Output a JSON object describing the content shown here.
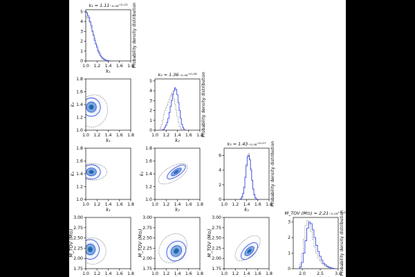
{
  "colors": {
    "page_bg": "#000000",
    "plot_bg": "#ffffff",
    "primary": "#3344dd",
    "secondary": "#777777",
    "fill_dark": "#1f5fa8",
    "fill_mid": "#5b9bd5",
    "fill_light": "#e6f0fa"
  },
  "chart_data": {
    "type": "corner",
    "parameters": [
      {
        "id": "k1",
        "label": "k₁",
        "title": "k₁ = 1.11₋₀.₀₈⁺⁰·¹¹",
        "range": [
          1.0,
          1.8
        ],
        "ticks": [
          "1.0",
          "1.2",
          "1.4",
          "1.6",
          "1.8"
        ]
      },
      {
        "id": "k2",
        "label": "k₂",
        "title": "k₂ = 1.36₋₀.₀₈⁺⁰·⁰⁸",
        "range": [
          1.0,
          1.8
        ],
        "ticks": [
          "1.0",
          "1.2",
          "1.4",
          "1.6",
          "1.8"
        ]
      },
      {
        "id": "k3",
        "label": "k₃",
        "title": "k₃ = 1.43₋₀.₀₆⁺⁰·⁰⁷",
        "range": [
          1.0,
          1.8
        ],
        "ticks": [
          "1.0",
          "1.2",
          "1.4",
          "1.6",
          "1.8"
        ]
      },
      {
        "id": "mtov",
        "label": "M_TOV (M⊙)",
        "title": "M_TOV (M⊙) = 2.21₋₀.₀₉⁺⁰·¹⁵",
        "range": [
          1.75,
          3.0
        ],
        "ticks": [
          "1.75",
          "2.00",
          "2.25",
          "2.50",
          "2.75",
          "3.00"
        ]
      }
    ],
    "diag_ylabel": "Probability density distribution",
    "diagonals": [
      {
        "param": "k1",
        "yrange": [
          0,
          5.2
        ],
        "yticks": [
          0,
          1,
          2,
          3,
          4,
          5
        ],
        "xticks_shown": [
          "1.0",
          "1.2",
          "1.4",
          "1.6",
          "1.8"
        ],
        "primary": {
          "x": [
            1.0,
            1.02,
            1.04,
            1.06,
            1.08,
            1.1,
            1.12,
            1.14,
            1.16,
            1.18,
            1.2,
            1.22,
            1.24,
            1.26,
            1.28,
            1.3,
            1.32,
            1.34,
            1.36,
            1.38,
            1.4,
            1.42,
            1.44
          ],
          "y": [
            5.0,
            4.9,
            4.6,
            4.4,
            4.0,
            3.6,
            3.0,
            2.6,
            2.1,
            1.7,
            1.4,
            1.0,
            0.8,
            0.55,
            0.4,
            0.25,
            0.18,
            0.12,
            0.08,
            0.05,
            0.03,
            0.02,
            0.0
          ]
        },
        "secondary": {
          "x": [
            1.0,
            1.02,
            1.04,
            1.06,
            1.08,
            1.1,
            1.12,
            1.14,
            1.16,
            1.18,
            1.2,
            1.22,
            1.24,
            1.26,
            1.28,
            1.3,
            1.32,
            1.34,
            1.36,
            1.38,
            1.4,
            1.42,
            1.44
          ],
          "y": [
            4.4,
            4.5,
            4.3,
            4.0,
            3.8,
            3.4,
            3.1,
            2.7,
            2.3,
            1.9,
            1.6,
            1.2,
            0.95,
            0.7,
            0.5,
            0.35,
            0.25,
            0.15,
            0.1,
            0.07,
            0.04,
            0.02,
            0.0
          ]
        }
      },
      {
        "param": "k2",
        "yrange": [
          0,
          5.2
        ],
        "yticks": [
          0,
          1,
          2,
          3,
          4,
          5
        ],
        "xticks_shown": [
          "1.0",
          "1.2",
          "1.4",
          "1.6",
          "1.8"
        ],
        "primary": {
          "x": [
            1.14,
            1.16,
            1.18,
            1.2,
            1.22,
            1.24,
            1.26,
            1.28,
            1.3,
            1.32,
            1.34,
            1.36,
            1.38,
            1.4,
            1.42,
            1.44,
            1.46,
            1.48,
            1.5,
            1.52,
            1.54
          ],
          "y": [
            0.05,
            0.1,
            0.3,
            0.5,
            0.8,
            1.2,
            1.8,
            2.4,
            3.0,
            3.6,
            4.0,
            4.3,
            4.1,
            3.6,
            2.8,
            2.0,
            1.2,
            0.6,
            0.3,
            0.1,
            0.0
          ]
        },
        "secondary": {
          "x": [
            1.1,
            1.12,
            1.14,
            1.16,
            1.18,
            1.2,
            1.22,
            1.24,
            1.26,
            1.28,
            1.3,
            1.32,
            1.34,
            1.36,
            1.38,
            1.4,
            1.42,
            1.44,
            1.46,
            1.48,
            1.5
          ],
          "y": [
            0.2,
            0.6,
            1.0,
            1.6,
            2.0,
            2.3,
            2.5,
            2.8,
            3.1,
            3.5,
            3.8,
            3.6,
            3.2,
            2.6,
            2.0,
            1.4,
            0.8,
            0.4,
            0.2,
            0.1,
            0.0
          ]
        }
      },
      {
        "param": "k3",
        "yrange": [
          0,
          7.0
        ],
        "yticks": [
          0,
          2,
          4,
          6
        ],
        "xticks_shown": [
          "1.0",
          "1.2",
          "1.4",
          "1.6",
          "1.8"
        ],
        "primary": {
          "x": [
            1.3,
            1.32,
            1.34,
            1.36,
            1.38,
            1.4,
            1.42,
            1.44,
            1.46,
            1.48,
            1.5,
            1.52,
            1.54,
            1.56,
            1.58
          ],
          "y": [
            0.1,
            0.3,
            0.8,
            1.6,
            3.0,
            4.6,
            5.8,
            6.0,
            5.4,
            4.0,
            2.6,
            1.4,
            0.6,
            0.2,
            0.05
          ]
        },
        "secondary": {
          "x": [
            1.3,
            1.32,
            1.34,
            1.36,
            1.38,
            1.4,
            1.42,
            1.44,
            1.46,
            1.48,
            1.5,
            1.52,
            1.54,
            1.56,
            1.58
          ],
          "y": [
            0.1,
            0.4,
            0.9,
            1.8,
            3.2,
            4.8,
            6.0,
            6.3,
            5.6,
            4.2,
            2.7,
            1.5,
            0.7,
            0.25,
            0.05
          ]
        }
      },
      {
        "param": "mtov",
        "yrange": [
          0,
          3.3
        ],
        "yticks": [
          0,
          1,
          2,
          3
        ],
        "xticks_shown": [
          "2.0",
          "2.5",
          "3.0"
        ],
        "primary": {
          "x": [
            1.95,
            2.0,
            2.05,
            2.1,
            2.15,
            2.2,
            2.25,
            2.3,
            2.35,
            2.4,
            2.45,
            2.5,
            2.55,
            2.6,
            2.65,
            2.7,
            2.75,
            2.8,
            2.85,
            2.9
          ],
          "y": [
            0.1,
            0.4,
            1.0,
            1.8,
            2.6,
            3.0,
            2.9,
            2.5,
            2.0,
            1.5,
            1.1,
            0.8,
            0.55,
            0.35,
            0.25,
            0.15,
            0.1,
            0.06,
            0.03,
            0.01
          ]
        },
        "secondary": {
          "x": [
            1.95,
            2.0,
            2.05,
            2.1,
            2.15,
            2.2,
            2.25,
            2.3,
            2.35,
            2.4,
            2.45,
            2.5,
            2.55,
            2.6,
            2.65,
            2.7,
            2.75,
            2.8,
            2.85,
            2.9
          ],
          "y": [
            0.3,
            1.0,
            1.9,
            2.8,
            3.1,
            2.9,
            2.4,
            1.9,
            1.4,
            1.0,
            0.7,
            0.5,
            0.35,
            0.25,
            0.15,
            0.1,
            0.06,
            0.04,
            0.02,
            0.01
          ]
        }
      }
    ],
    "pairs": [
      {
        "x": "k1",
        "y": "k2",
        "ylabel_ticks": [
          "1.0",
          "1.2",
          "1.4",
          "1.6",
          "1.8"
        ],
        "centre": [
          1.1,
          1.36
        ],
        "sx": 0.1,
        "sy": 0.09,
        "tilt": 0.0,
        "sec_centre": [
          1.13,
          1.3
        ],
        "sec_sx": 0.16,
        "sec_sy": 0.16,
        "sec_tilt": -20
      },
      {
        "x": "k1",
        "y": "k3",
        "ylabel_ticks": [
          "1.0",
          "1.2",
          "1.4",
          "1.6",
          "1.8"
        ],
        "centre": [
          1.1,
          1.43
        ],
        "sx": 0.1,
        "sy": 0.07,
        "tilt": 0.0,
        "sec_centre": [
          1.12,
          1.43
        ],
        "sec_sx": 0.16,
        "sec_sy": 0.08,
        "sec_tilt": 0
      },
      {
        "x": "k2",
        "y": "k3",
        "ylabel_ticks": [
          "1.0",
          "1.2",
          "1.4",
          "1.6",
          "1.8"
        ],
        "centre": [
          1.38,
          1.43
        ],
        "sx": 0.12,
        "sy": 0.04,
        "tilt": 35,
        "sec_centre": [
          1.32,
          1.4
        ],
        "sec_sx": 0.18,
        "sec_sy": 0.07,
        "sec_tilt": 30
      },
      {
        "x": "k1",
        "y": "mtov",
        "ylabel_ticks": [
          "1.75",
          "2.00",
          "2.25",
          "2.50",
          "2.75",
          "3.00"
        ],
        "centre": [
          1.08,
          2.22
        ],
        "sx": 0.1,
        "sy": 0.15,
        "tilt": 0.0,
        "sec_centre": [
          1.12,
          2.18
        ],
        "sec_sx": 0.15,
        "sec_sy": 0.2,
        "sec_tilt": -10
      },
      {
        "x": "k2",
        "y": "mtov",
        "ylabel_ticks": [
          "1.75",
          "2.00",
          "2.25",
          "2.50",
          "2.75",
          "3.00"
        ],
        "centre": [
          1.38,
          2.18
        ],
        "sx": 0.1,
        "sy": 0.16,
        "tilt": -40,
        "sec_centre": [
          1.32,
          2.25
        ],
        "sec_sx": 0.14,
        "sec_sy": 0.24,
        "sec_tilt": -40
      },
      {
        "x": "k3",
        "y": "mtov",
        "ylabel_ticks": [
          "1.75",
          "2.00",
          "2.25",
          "2.50",
          "2.75",
          "3.00"
        ],
        "centre": [
          1.45,
          2.18
        ],
        "sx": 0.06,
        "sy": 0.16,
        "tilt": -45,
        "sec_centre": [
          1.42,
          2.25
        ],
        "sec_sx": 0.09,
        "sec_sy": 0.24,
        "sec_tilt": -45
      }
    ],
    "grid": false,
    "legend": "none"
  }
}
